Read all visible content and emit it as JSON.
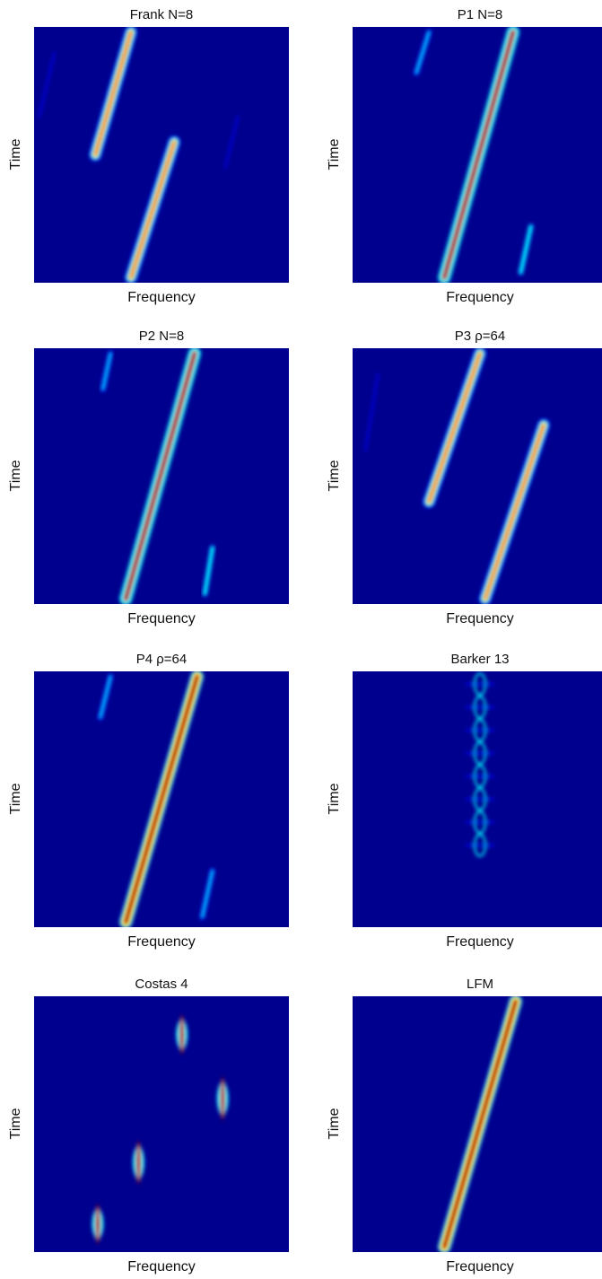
{
  "figure": {
    "ylabel": "Time",
    "xlabel": "Frequency"
  },
  "chart_data": [
    {
      "type": "heatmap",
      "title": "Frank N=8",
      "xlabel": "Frequency",
      "ylabel": "Time",
      "grid": false,
      "legend": "none",
      "colors": [
        "#00008f",
        "#0000ff",
        "#00ffff",
        "#ffff00",
        "#ff0000",
        "#800000"
      ],
      "features": [
        {
          "kind": "ridge",
          "x1": 0.38,
          "y1": 0.02,
          "x2": 0.24,
          "y2": 0.5,
          "peak": 0.72,
          "wobble": true
        },
        {
          "kind": "ridge",
          "x1": 0.55,
          "y1": 0.45,
          "x2": 0.38,
          "y2": 0.98,
          "peak": 0.8,
          "wobble": true
        },
        {
          "kind": "ridge",
          "x1": 0.08,
          "y1": 0.1,
          "x2": 0.02,
          "y2": 0.35,
          "peak": 0.15
        },
        {
          "kind": "ridge",
          "x1": 0.8,
          "y1": 0.35,
          "x2": 0.75,
          "y2": 0.55,
          "peak": 0.15
        }
      ]
    },
    {
      "type": "heatmap",
      "title": "P1 N=8",
      "xlabel": "Frequency",
      "ylabel": "Time",
      "grid": false,
      "legend": "none",
      "colors": [
        "#00008f",
        "#0000ff",
        "#00ffff",
        "#ffff00",
        "#ff0000",
        "#800000"
      ],
      "features": [
        {
          "kind": "ridge",
          "x1": 0.63,
          "y1": 0.02,
          "x2": 0.36,
          "y2": 0.98,
          "peak": 0.88,
          "wobble": true
        },
        {
          "kind": "ridge",
          "x1": 0.3,
          "y1": 0.02,
          "x2": 0.25,
          "y2": 0.18,
          "peak": 0.25
        },
        {
          "kind": "ridge",
          "x1": 0.7,
          "y1": 0.78,
          "x2": 0.66,
          "y2": 0.96,
          "peak": 0.28
        }
      ]
    },
    {
      "type": "heatmap",
      "title": "P2 N=8",
      "xlabel": "Frequency",
      "ylabel": "Time",
      "grid": false,
      "legend": "none",
      "colors": [
        "#00008f",
        "#0000ff",
        "#00ffff",
        "#ffff00",
        "#ff0000",
        "#800000"
      ],
      "features": [
        {
          "kind": "ridge",
          "x1": 0.63,
          "y1": 0.02,
          "x2": 0.36,
          "y2": 0.98,
          "peak": 0.9,
          "wobble": true
        },
        {
          "kind": "ridge",
          "x1": 0.3,
          "y1": 0.02,
          "x2": 0.27,
          "y2": 0.16,
          "peak": 0.25
        },
        {
          "kind": "ridge",
          "x1": 0.7,
          "y1": 0.78,
          "x2": 0.67,
          "y2": 0.96,
          "peak": 0.28
        }
      ]
    },
    {
      "type": "heatmap",
      "title": "P3 ρ=64",
      "xlabel": "Frequency",
      "ylabel": "Time",
      "grid": false,
      "legend": "none",
      "colors": [
        "#00008f",
        "#0000ff",
        "#00ffff",
        "#ffff00",
        "#ff0000",
        "#800000"
      ],
      "features": [
        {
          "kind": "ridge",
          "x1": 0.5,
          "y1": 0.02,
          "x2": 0.3,
          "y2": 0.6,
          "peak": 0.75
        },
        {
          "kind": "ridge",
          "x1": 0.75,
          "y1": 0.3,
          "x2": 0.52,
          "y2": 0.98,
          "peak": 0.8
        },
        {
          "kind": "ridge",
          "x1": 0.1,
          "y1": 0.1,
          "x2": 0.05,
          "y2": 0.4,
          "peak": 0.12
        }
      ]
    },
    {
      "type": "heatmap",
      "title": "P4 ρ=64",
      "xlabel": "Frequency",
      "ylabel": "Time",
      "grid": false,
      "legend": "none",
      "colors": [
        "#00008f",
        "#0000ff",
        "#00ffff",
        "#ffff00",
        "#ff0000",
        "#800000"
      ],
      "features": [
        {
          "kind": "ridge",
          "x1": 0.64,
          "y1": 0.02,
          "x2": 0.36,
          "y2": 0.98,
          "peak": 0.95
        },
        {
          "kind": "ridge",
          "x1": 0.3,
          "y1": 0.02,
          "x2": 0.26,
          "y2": 0.18,
          "peak": 0.25
        },
        {
          "kind": "ridge",
          "x1": 0.7,
          "y1": 0.78,
          "x2": 0.66,
          "y2": 0.96,
          "peak": 0.25
        }
      ]
    },
    {
      "type": "heatmap",
      "title": "Barker 13",
      "xlabel": "Frequency",
      "ylabel": "Time",
      "grid": false,
      "legend": "none",
      "colors": [
        "#00008f",
        "#0000ff",
        "#00ffff",
        "#ffff00",
        "#ff0000",
        "#800000"
      ],
      "features": [
        {
          "kind": "vline",
          "x": 0.5,
          "y1": 0.02,
          "y2": 0.75,
          "peak": 0.45
        },
        {
          "kind": "vline",
          "x": 0.5,
          "y1": 0.75,
          "y2": 0.99,
          "peak": 0.95
        }
      ]
    },
    {
      "type": "heatmap",
      "title": "Costas 4",
      "xlabel": "Frequency",
      "ylabel": "Time",
      "grid": false,
      "legend": "none",
      "colors": [
        "#00008f",
        "#0000ff",
        "#00ffff",
        "#ffff00",
        "#ff0000",
        "#800000"
      ],
      "features": [
        {
          "kind": "blob",
          "x": 0.58,
          "y": 0.15,
          "h": 0.1,
          "peak": 0.9
        },
        {
          "kind": "blob",
          "x": 0.74,
          "y": 0.4,
          "h": 0.11,
          "peak": 0.9
        },
        {
          "kind": "blob",
          "x": 0.41,
          "y": 0.65,
          "h": 0.11,
          "peak": 0.9
        },
        {
          "kind": "blob",
          "x": 0.25,
          "y": 0.89,
          "h": 0.1,
          "peak": 0.9
        }
      ]
    },
    {
      "type": "heatmap",
      "title": "LFM",
      "xlabel": "Frequency",
      "ylabel": "Time",
      "grid": false,
      "legend": "none",
      "colors": [
        "#00008f",
        "#0000ff",
        "#00ffff",
        "#ffff00",
        "#ff0000",
        "#800000"
      ],
      "features": [
        {
          "kind": "ridge",
          "x1": 0.64,
          "y1": 0.02,
          "x2": 0.36,
          "y2": 0.98,
          "peak": 0.95
        }
      ]
    }
  ]
}
